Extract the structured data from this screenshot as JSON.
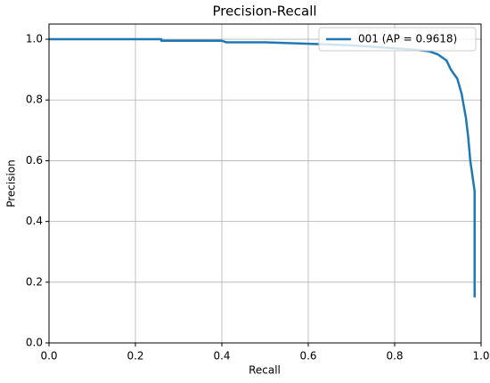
{
  "chart_data": {
    "type": "line",
    "title": "Precision-Recall",
    "x_label": "Recall",
    "y_label": "Precision",
    "x": [
      0,
      0.26,
      0.26,
      0.4,
      0.41,
      0.5,
      0.6,
      0.7,
      0.8,
      0.85,
      0.88,
      0.9,
      0.92,
      0.93,
      0.945,
      0.955,
      0.96,
      0.965,
      0.97,
      0.975,
      0.98,
      0.985,
      0.985,
      0.985
    ],
    "series": [
      {
        "name": "001 (AP = 0.9618)",
        "color": "#1f77b4",
        "values": [
          1.0,
          1.0,
          0.995,
          0.995,
          0.99,
          0.99,
          0.985,
          0.98,
          0.97,
          0.965,
          0.96,
          0.95,
          0.93,
          0.9,
          0.87,
          0.82,
          0.78,
          0.74,
          0.68,
          0.6,
          0.55,
          0.5,
          0.3,
          0.15
        ]
      }
    ],
    "xlim": [
      0,
      1.0
    ],
    "ylim": [
      0,
      1.05
    ],
    "xticks": [
      {
        "value": 0,
        "label": "0.0"
      },
      0.2,
      0.4,
      0.6,
      0.8,
      {
        "value": 1,
        "label": "1.0"
      }
    ],
    "yticks": [
      {
        "value": 0,
        "label": "0.0"
      },
      0.2,
      0.4,
      0.6,
      0.8,
      {
        "value": 1,
        "label": "1.0"
      }
    ],
    "grid": true,
    "legend": "upper right"
  }
}
